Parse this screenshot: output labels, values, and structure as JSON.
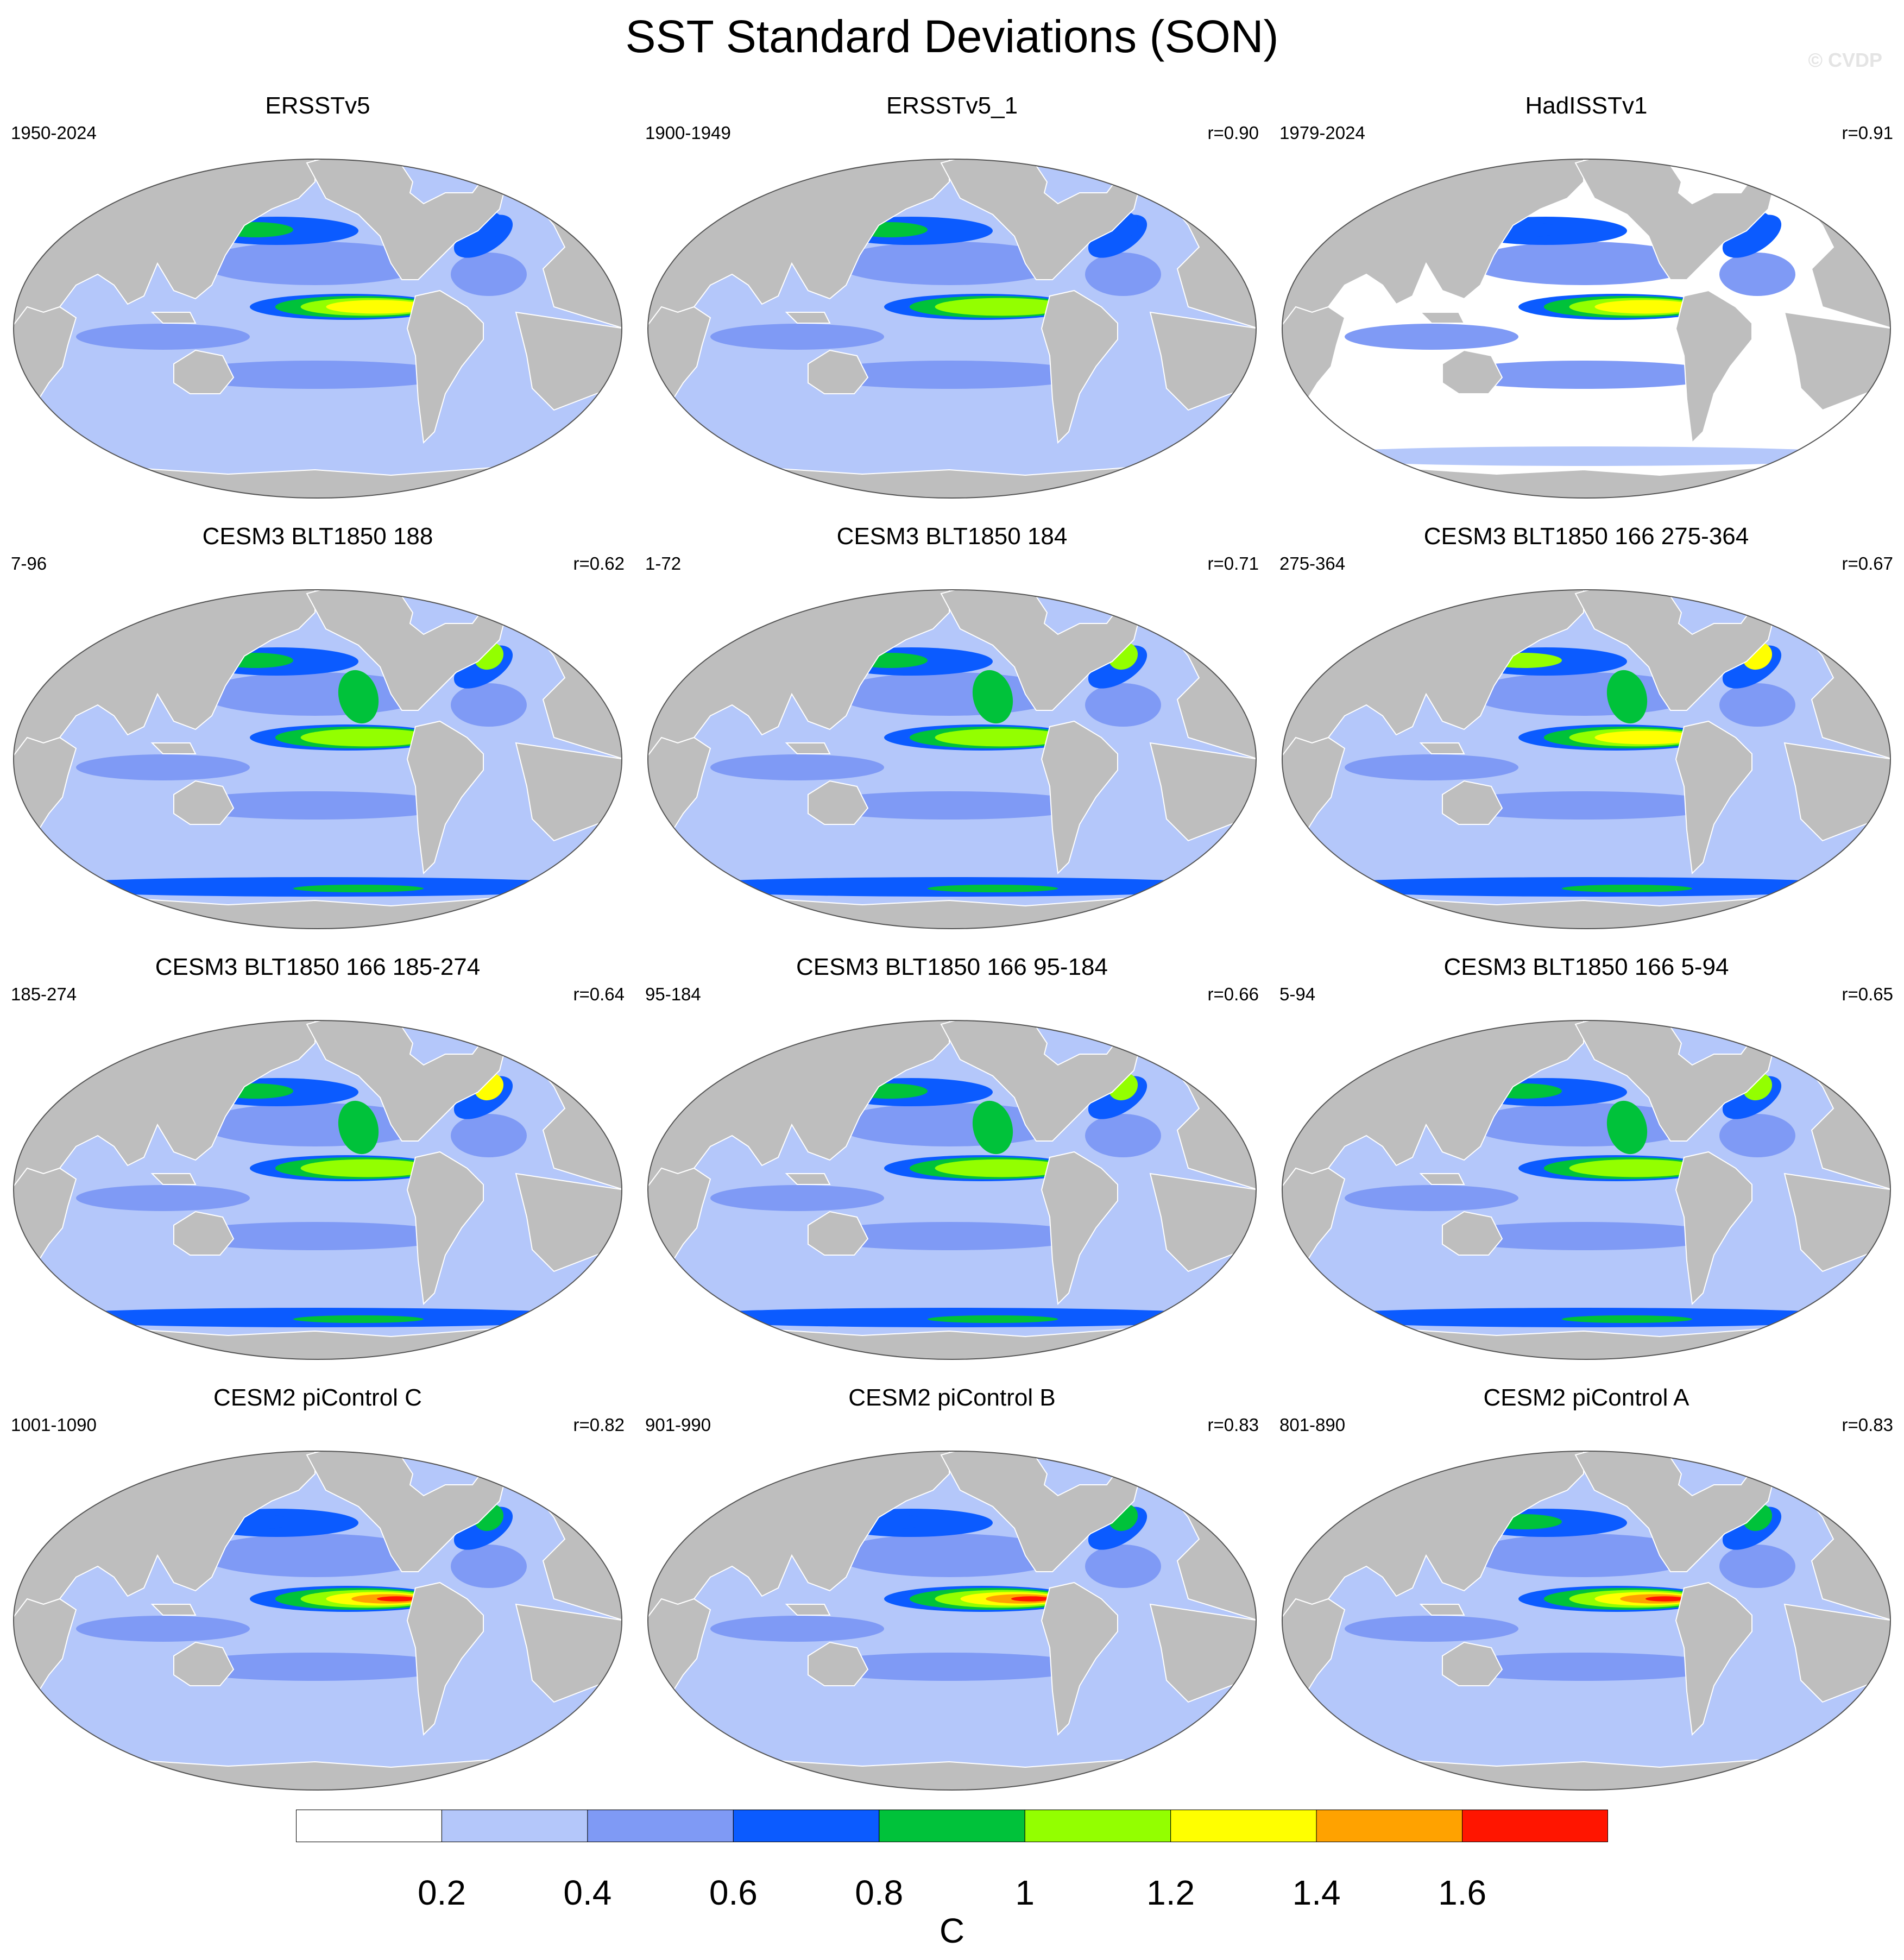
{
  "title": "SST Standard Deviations (SON)",
  "watermark": "© CVDP",
  "colors": {
    "land": "#bebebe",
    "levels": [
      "#ffffff",
      "#b4c7fa",
      "#7f9af5",
      "#0b5bff",
      "#00c23a",
      "#93ff00",
      "#ffff00",
      "#ffa200",
      "#ff1500"
    ]
  },
  "panels": [
    {
      "title": "ERSSTv5",
      "period": "1950-2024",
      "r": "",
      "enso": 0.55,
      "npac": 0.5,
      "natl": 0.25,
      "so": 0.1,
      "bg": 1
    },
    {
      "title": "ERSSTv5_1",
      "period": "1900-1949",
      "r": "r=0.90",
      "enso": 0.45,
      "npac": 0.6,
      "natl": 0.35,
      "so": 0.15,
      "bg": 1
    },
    {
      "title": "HadISSTv1",
      "period": "1979-2024",
      "r": "r=0.91",
      "enso": 0.6,
      "npac": 0.35,
      "natl": 0.3,
      "so": 0.05,
      "bg": 0
    },
    {
      "title": "CESM3 BLT1850 188",
      "period": "7-96",
      "r": "r=0.62",
      "enso": 0.35,
      "npac": 0.75,
      "natl": 0.85,
      "so": 0.6,
      "bg": 1
    },
    {
      "title": "CESM3 BLT1850 184",
      "period": "1-72",
      "r": "r=0.71",
      "enso": 0.45,
      "npac": 0.75,
      "natl": 0.8,
      "so": 0.5,
      "bg": 1
    },
    {
      "title": "CESM3 BLT1850 166 275-364",
      "period": "275-364",
      "r": "r=0.67",
      "enso": 0.5,
      "npac": 0.85,
      "natl": 0.9,
      "so": 0.5,
      "bg": 1
    },
    {
      "title": "CESM3 BLT1850 166 185-274",
      "period": "185-274",
      "r": "r=0.64",
      "enso": 0.4,
      "npac": 0.8,
      "natl": 0.9,
      "so": 0.55,
      "bg": 1
    },
    {
      "title": "CESM3 BLT1850 166 95-184",
      "period": "95-184",
      "r": "r=0.66",
      "enso": 0.4,
      "npac": 0.8,
      "natl": 0.85,
      "so": 0.55,
      "bg": 1
    },
    {
      "title": "CESM3 BLT1850 166 5-94",
      "period": "5-94",
      "r": "r=0.65",
      "enso": 0.45,
      "npac": 0.8,
      "natl": 0.85,
      "so": 0.55,
      "bg": 1
    },
    {
      "title": "CESM2 piControl C",
      "period": "1001-1090",
      "r": "r=0.82",
      "enso": 0.95,
      "npac": 0.45,
      "natl": 0.45,
      "so": 0.1,
      "bg": 1
    },
    {
      "title": "CESM2 piControl B",
      "period": "901-990",
      "r": "r=0.83",
      "enso": 0.95,
      "npac": 0.45,
      "natl": 0.4,
      "so": 0.1,
      "bg": 1
    },
    {
      "title": "CESM2 piControl A",
      "period": "801-890",
      "r": "r=0.83",
      "enso": 0.9,
      "npac": 0.5,
      "natl": 0.4,
      "so": 0.1,
      "bg": 1
    }
  ],
  "colorbar": {
    "ticks": [
      "0.2",
      "0.4",
      "0.6",
      "0.8",
      "1",
      "1.2",
      "1.4",
      "1.6"
    ],
    "unit": "C"
  }
}
